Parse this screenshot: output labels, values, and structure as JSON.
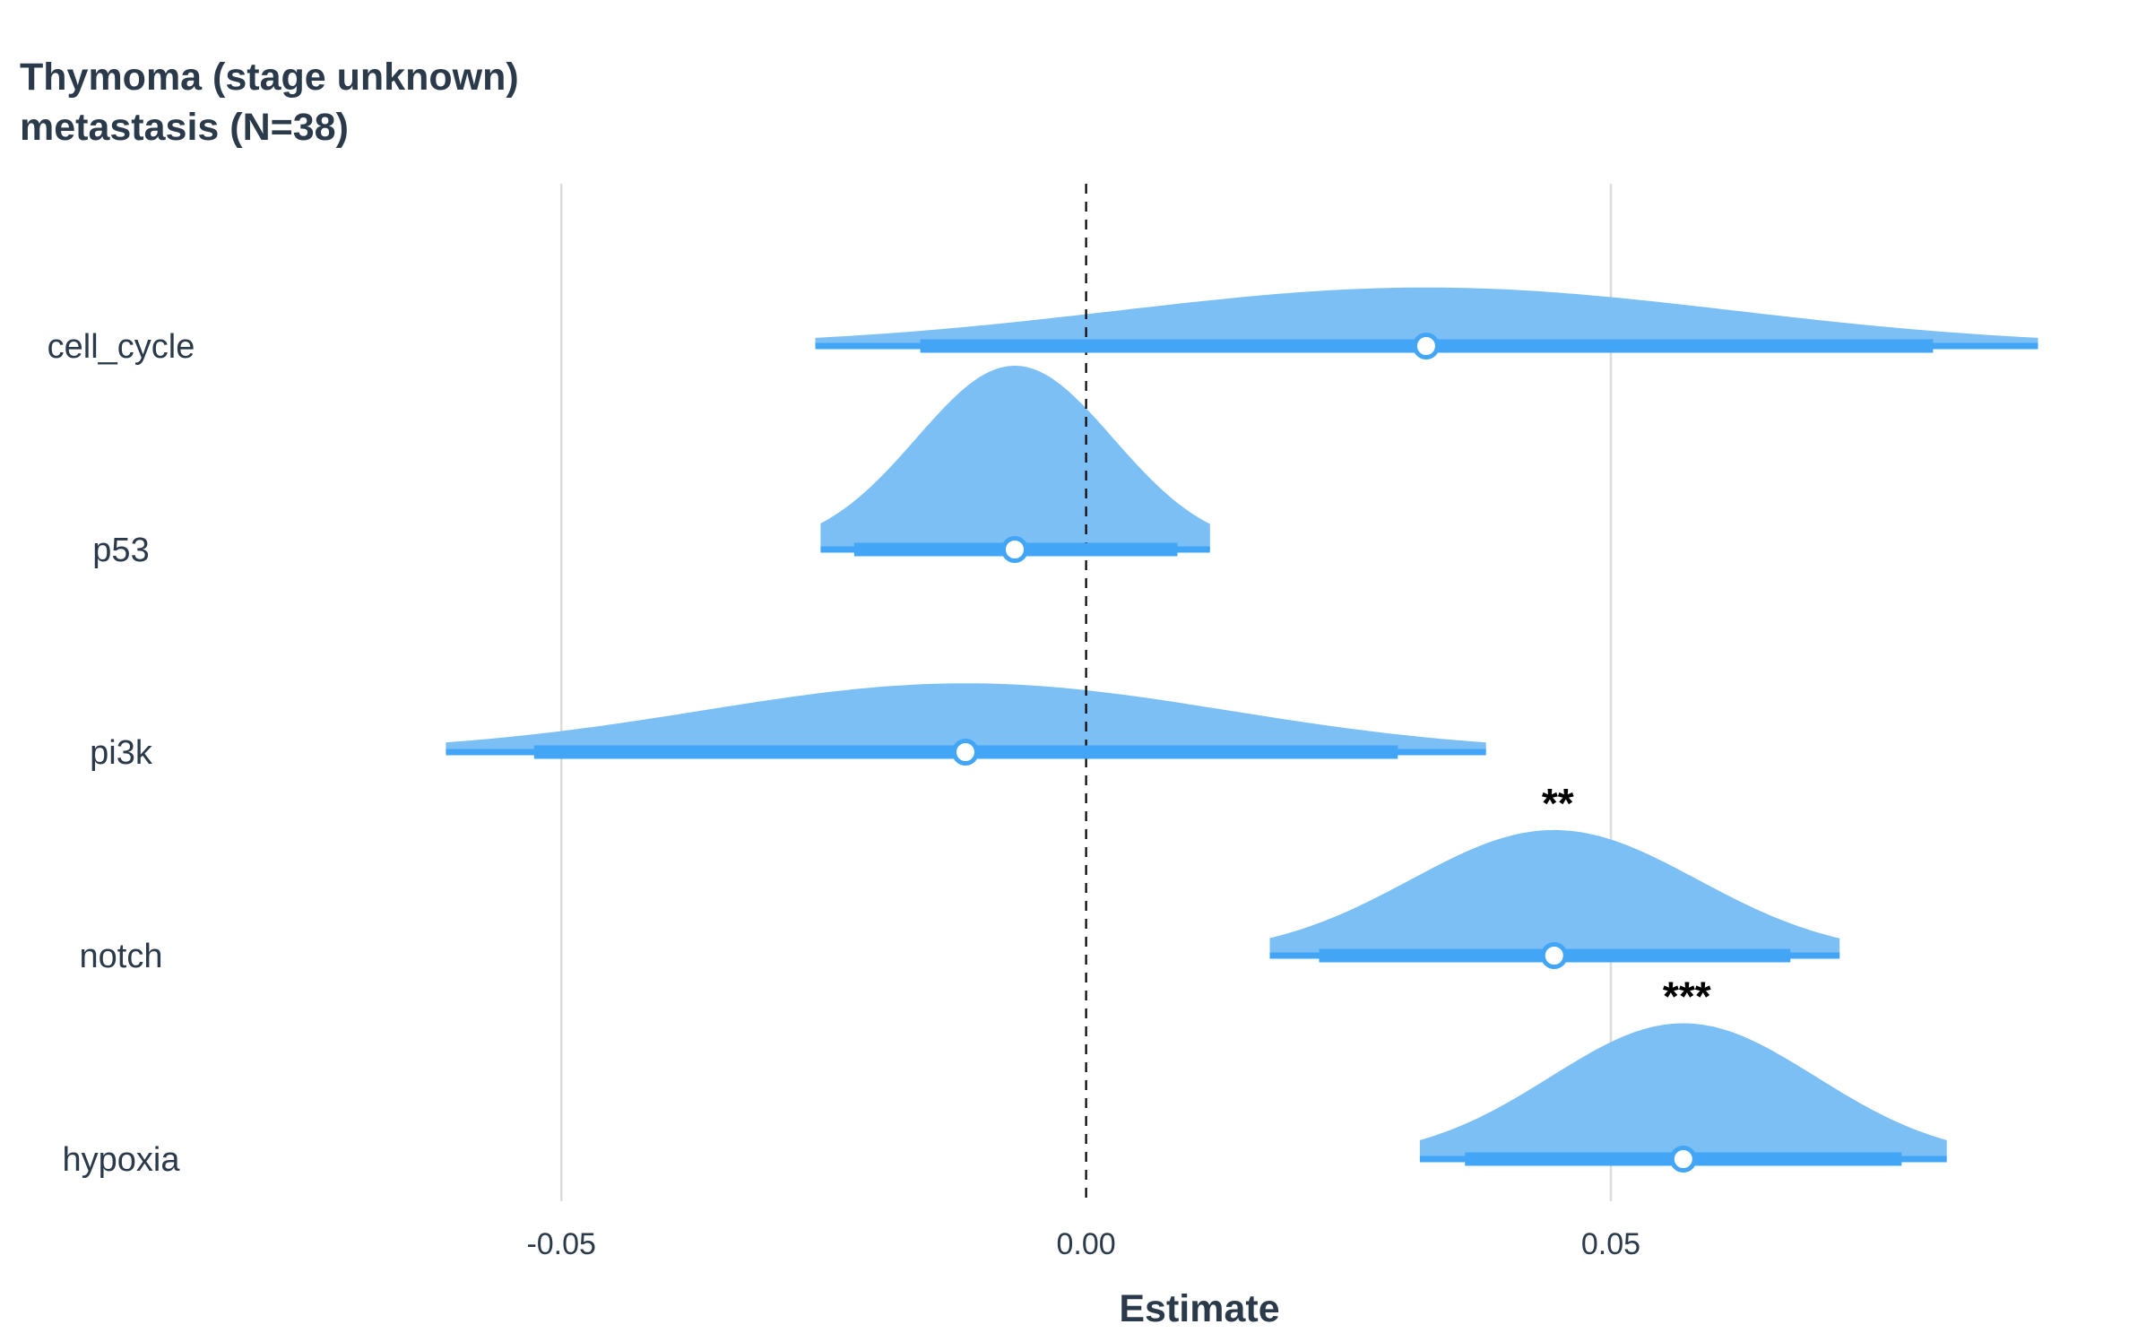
{
  "title_line1": "Thymoma (stage unknown)",
  "title_line2": "metastasis (N=38)",
  "chart_data": {
    "type": "forest-halfeye",
    "title": "Thymoma (stage unknown) metastasis (N=38)",
    "xlabel": "Estimate",
    "ylabel": "",
    "xlim": [
      -0.0753,
      0.0945
    ],
    "x_ticks": [
      -0.05,
      0.0,
      0.05
    ],
    "x_tick_labels": [
      "-0.05",
      "0.00",
      "0.05"
    ],
    "reference_line": 0.0,
    "grid": "vertical major",
    "fill_color": "#7bbff5",
    "interval_color": "#42a5f5",
    "rows": [
      {
        "label": "cell_cycle",
        "estimate": 0.0324,
        "inner": [
          -0.0158,
          0.0807
        ],
        "outer": [
          -0.0258,
          0.0907
        ],
        "significance": ""
      },
      {
        "label": "p53",
        "estimate": -0.0068,
        "inner": [
          -0.0221,
          0.0087
        ],
        "outer": [
          -0.0253,
          0.0118
        ],
        "significance": ""
      },
      {
        "label": "pi3k",
        "estimate": -0.0115,
        "inner": [
          -0.0526,
          0.0297
        ],
        "outer": [
          -0.061,
          0.0381
        ],
        "significance": ""
      },
      {
        "label": "notch",
        "estimate": 0.0446,
        "inner": [
          0.0222,
          0.0671
        ],
        "outer": [
          0.0175,
          0.0718
        ],
        "significance": "**"
      },
      {
        "label": "hypoxia",
        "estimate": 0.0569,
        "inner": [
          0.0361,
          0.0777
        ],
        "outer": [
          0.0318,
          0.082
        ],
        "significance": "***"
      }
    ]
  }
}
